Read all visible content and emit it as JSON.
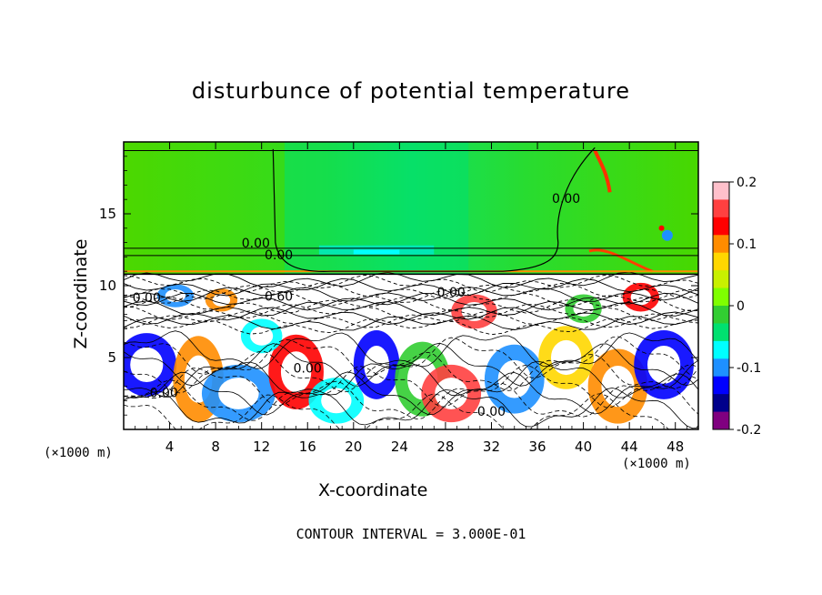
{
  "chart_data": {
    "type": "heatmap",
    "title": "disturbunce of potential temperature",
    "xlabel": "X-coordinate",
    "ylabel": "Z-coordinate",
    "x_unit_left": "(×1000 m)",
    "x_unit_right": "(×1000 m)",
    "footer": "CONTOUR INTERVAL = 3.000E-01",
    "xlim": [
      0,
      50
    ],
    "ylim": [
      0,
      20
    ],
    "x_ticks": [
      "4",
      "8",
      "12",
      "16",
      "20",
      "24",
      "28",
      "32",
      "36",
      "40",
      "44",
      "48"
    ],
    "x_tick_values": [
      4,
      8,
      12,
      16,
      20,
      24,
      28,
      32,
      36,
      40,
      44,
      48
    ],
    "y_ticks": [
      "5",
      "10",
      "15"
    ],
    "y_tick_values": [
      5,
      10,
      15
    ],
    "colorbar": {
      "range": [
        -0.2,
        0.2
      ],
      "tick_labels": [
        "0.2",
        "0.1",
        "0",
        "-0.1",
        "-0.2"
      ],
      "tick_values": [
        0.2,
        0.1,
        0,
        -0.1,
        -0.2
      ],
      "colors": [
        "#ffc0cb",
        "#ff4040",
        "#ff0000",
        "#ff8c00",
        "#ffd700",
        "#c8f000",
        "#7fff00",
        "#32cd32",
        "#00e070",
        "#00ffff",
        "#1e90ff",
        "#0000ff",
        "#00008b",
        "#800080"
      ]
    },
    "contour_labels": [
      {
        "text": "0.00",
        "x": 11.5,
        "z": 12.9
      },
      {
        "text": "0.00",
        "x": 13.5,
        "z": 12.1
      },
      {
        "text": "0.00",
        "x": 38.5,
        "z": 16.0
      },
      {
        "text": "0.00",
        "x": 2.0,
        "z": 9.1
      },
      {
        "text": "0.60",
        "x": 13.5,
        "z": 9.2
      },
      {
        "text": "0.00",
        "x": 28.5,
        "z": 9.5
      },
      {
        "text": "0.00",
        "x": 16.0,
        "z": 4.2
      },
      {
        "text": "0.00",
        "x": 32.0,
        "z": 1.2
      },
      {
        "text": "0.00",
        "x": 3.5,
        "z": 2.5
      }
    ],
    "regions": {
      "upper_layer": {
        "z_range": [
          10.8,
          20
        ],
        "dominant_value": 0.02
      },
      "lower_layer": {
        "z_range": [
          0,
          10.8
        ],
        "dominant_value_range": [
          -0.2,
          0.2
        ]
      }
    }
  }
}
